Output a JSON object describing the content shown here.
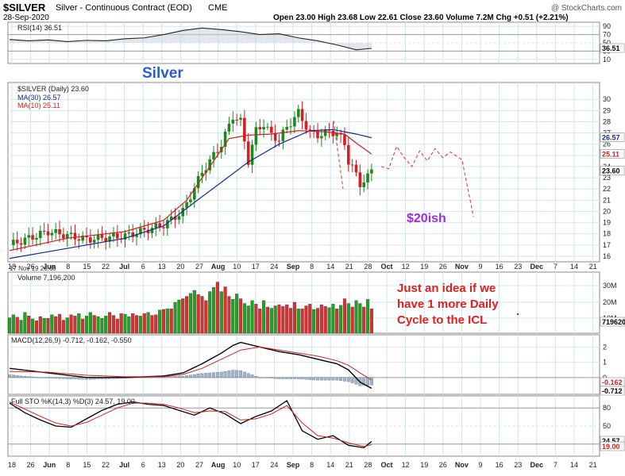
{
  "header": {
    "symbol": "$SILVER",
    "name": "Silver - Continuous Contract (EOD)",
    "exchange": "CME",
    "date": "28-Sep-2020",
    "copyright": "@ StockCharts.com",
    "ohlc": "Open 23.00  High 23.68  Low 22.61  Close 23.60  Volume 7.2M  Chg +0.51 (+2.21%)"
  },
  "annotations": {
    "title": "Silver",
    "target": "$20ish",
    "note_lines": [
      "Just an idea if we",
      "have 1 more Daily",
      "Cycle to the ICL"
    ]
  },
  "chart_data": [
    {
      "type": "line",
      "panel": "rsi",
      "legend": "RSI(14) 36.51",
      "last_value": "36.51",
      "ylim": [
        0,
        100
      ],
      "ticks": [
        10,
        30,
        50,
        70,
        90
      ],
      "x": [
        0,
        5,
        10,
        15,
        20,
        25,
        30,
        35,
        40,
        45,
        50,
        55,
        60,
        65,
        70,
        75,
        80,
        85,
        90,
        94
      ],
      "y": [
        58,
        55,
        57,
        53,
        56,
        55,
        60,
        62,
        70,
        80,
        86,
        82,
        77,
        70,
        72,
        62,
        55,
        45,
        33,
        36.51
      ]
    },
    {
      "type": "line",
      "panel": "price",
      "legend": "$SILVER (Daily) 23.60",
      "ylim": [
        15.5,
        31.5
      ],
      "ticks": [
        16,
        17,
        18,
        19,
        20,
        21,
        22,
        23,
        24,
        25,
        26,
        27,
        28,
        29,
        30
      ],
      "right_labels": [
        "26.57",
        "25.11",
        "23.60"
      ],
      "x_labels": [
        "18",
        "26",
        "Jun",
        "8",
        "15",
        "22",
        "Jul",
        "6",
        "13",
        "20",
        "27",
        "Aug",
        "10",
        "17",
        "24",
        "Sep",
        "8",
        "14",
        "21",
        "28",
        "Oct",
        "12",
        "19",
        "26",
        "Nov",
        "9",
        "16",
        "23",
        "Dec",
        "7",
        "14",
        "21"
      ],
      "corner_label": "17 Nov 19 26.68",
      "series": [
        {
          "name": "$SILVER (Daily) 23.60",
          "x": [
            0,
            10,
            20,
            30,
            40,
            45,
            50,
            55,
            58,
            60,
            62,
            64,
            66,
            68,
            70,
            72,
            75,
            78,
            80,
            83,
            85,
            87,
            88,
            89,
            90,
            91,
            92,
            93,
            94
          ],
          "values": [
            17.0,
            18.2,
            17.5,
            17.8,
            18.8,
            20.0,
            23.5,
            26.0,
            28.5,
            28.0,
            24.5,
            27.2,
            27.8,
            26.8,
            26.4,
            27.5,
            28.8,
            27.0,
            26.8,
            27.1,
            27.0,
            26.0,
            24.5,
            24.0,
            23.2,
            22.4,
            22.8,
            23.09,
            23.6
          ]
        },
        {
          "name": "MA(30) 26.57",
          "x": [
            0,
            15,
            30,
            40,
            48,
            55,
            62,
            70,
            78,
            84,
            90,
            94
          ],
          "values": [
            15.8,
            16.7,
            17.6,
            18.7,
            20.8,
            22.6,
            24.4,
            26.0,
            27.2,
            27.3,
            26.9,
            26.57
          ]
        },
        {
          "name": "MA(10) 25.11",
          "x": [
            0,
            15,
            30,
            40,
            46,
            52,
            57,
            62,
            68,
            75,
            82,
            87,
            90,
            94
          ],
          "values": [
            16.5,
            17.6,
            18.2,
            19.2,
            21.0,
            24.0,
            26.5,
            26.8,
            26.9,
            27.2,
            27.1,
            26.9,
            26.1,
            25.11
          ]
        }
      ],
      "projection": {
        "x": [
          94,
          96,
          98,
          100,
          102,
          104,
          106,
          108,
          110,
          112,
          115,
          118
        ],
        "values": [
          24.0,
          23.8,
          25.8,
          24.8,
          24.0,
          25.4,
          24.5,
          25.6,
          24.8,
          25.3,
          24.6,
          19.5
        ]
      }
    },
    {
      "type": "bar",
      "panel": "volume",
      "legend": "Volume 7,196,200",
      "ticks": [
        "10M",
        "20M",
        "30M"
      ],
      "last_value": "7196200",
      "values": [
        0.26,
        0.31,
        0.27,
        0.22,
        0.35,
        0.29,
        0.24,
        0.21,
        0.28,
        0.25,
        0.25,
        0.31,
        0.28,
        0.32,
        0.22,
        0.26,
        0.31,
        0.29,
        0.33,
        0.24,
        0.29,
        0.35,
        0.3,
        0.28,
        0.25,
        0.29,
        0.35,
        0.3,
        0.24,
        0.33,
        0.32,
        0.28,
        0.33,
        0.3,
        0.29,
        0.33,
        0.35,
        0.3,
        0.31,
        0.39,
        0.4,
        0.41,
        0.41,
        0.52,
        0.56,
        0.58,
        0.62,
        0.67,
        0.72,
        0.65,
        0.62,
        0.55,
        0.7,
        0.77,
        0.86,
        0.7,
        0.78,
        0.62,
        0.57,
        0.66,
        0.58,
        0.5,
        0.46,
        0.55,
        0.49,
        0.41,
        0.55,
        0.44,
        0.42,
        0.46,
        0.48,
        0.45,
        0.48,
        0.42,
        0.52,
        0.41,
        0.41,
        0.46,
        0.49,
        0.4,
        0.42,
        0.48,
        0.45,
        0.43,
        0.49,
        0.41,
        0.47,
        0.58,
        0.5,
        0.44,
        0.55,
        0.5,
        0.44,
        0.57,
        0.41
      ],
      "up": [
        1,
        1,
        0,
        1,
        1,
        0,
        1,
        0,
        0,
        1,
        0,
        1,
        0,
        0,
        0,
        1,
        0,
        0,
        1,
        0,
        1,
        1,
        0,
        1,
        1,
        1,
        0,
        0,
        0,
        0,
        1,
        1,
        0,
        0,
        1,
        0,
        1,
        0,
        0,
        1,
        0,
        1,
        0,
        1,
        1,
        0,
        0,
        1,
        1,
        0,
        0,
        0,
        1,
        1,
        0,
        1,
        0,
        0,
        1,
        1,
        0,
        1,
        1,
        1,
        0,
        0,
        1,
        0,
        1,
        1,
        0,
        0,
        0,
        0,
        0,
        1,
        0,
        0,
        0,
        1,
        0,
        0,
        0,
        1,
        1,
        0,
        1,
        0,
        1,
        0,
        1,
        1,
        0,
        1,
        0
      ]
    },
    {
      "type": "line",
      "panel": "macd",
      "legend": "MACD(12,26,9) -0.712, -0.162, -0.550",
      "ticks": [
        "2",
        "1",
        "0"
      ],
      "right_labels": [
        "-0.162",
        "-0.712"
      ],
      "ylim": [
        -1.1,
        2.8
      ],
      "series": [
        {
          "name": "MACD(12,26,9)",
          "x": [
            0,
            10,
            20,
            30,
            40,
            45,
            50,
            55,
            58,
            60,
            65,
            70,
            75,
            80,
            85,
            88,
            91,
            94
          ],
          "values": [
            0.6,
            0.3,
            0.0,
            0.0,
            0.1,
            0.3,
            0.9,
            1.6,
            2.1,
            2.3,
            2.0,
            1.7,
            1.5,
            1.2,
            0.9,
            0.5,
            -0.3,
            -0.712
          ]
        },
        {
          "name": "signal",
          "x": [
            0,
            10,
            20,
            30,
            40,
            45,
            50,
            55,
            60,
            65,
            70,
            75,
            80,
            85,
            88,
            91,
            94
          ],
          "values": [
            0.4,
            0.35,
            0.15,
            0.05,
            0.05,
            0.2,
            0.6,
            1.2,
            1.8,
            2.0,
            1.8,
            1.6,
            1.4,
            1.1,
            0.8,
            0.3,
            -0.162
          ]
        }
      ],
      "histogram_range": [
        -0.55,
        0.5
      ]
    },
    {
      "type": "line",
      "panel": "stochastic",
      "legend": "Full STO %K(14,3) %D(3) 24.57, 19.00",
      "ylim": [
        0,
        100
      ],
      "ticks": [
        "20",
        "50",
        "80"
      ],
      "right_labels": [
        "24.57",
        "19.00"
      ],
      "series": [
        {
          "name": "%K",
          "x": [
            0,
            4,
            8,
            12,
            16,
            20,
            24,
            28,
            32,
            36,
            40,
            44,
            48,
            52,
            56,
            60,
            64,
            68,
            72,
            76,
            80,
            84,
            88,
            92,
            94
          ],
          "values": [
            88,
            72,
            60,
            50,
            48,
            62,
            76,
            86,
            90,
            86,
            84,
            76,
            68,
            80,
            70,
            54,
            66,
            75,
            92,
            42,
            28,
            34,
            18,
            14,
            24.57
          ]
        },
        {
          "name": "%D",
          "x": [
            0,
            4,
            8,
            12,
            16,
            20,
            24,
            28,
            32,
            36,
            40,
            44,
            48,
            52,
            56,
            60,
            64,
            68,
            72,
            76,
            80,
            84,
            88,
            92,
            94
          ],
          "values": [
            90,
            78,
            66,
            55,
            50,
            56,
            68,
            80,
            88,
            88,
            86,
            80,
            72,
            75,
            74,
            60,
            62,
            70,
            84,
            55,
            34,
            30,
            22,
            16,
            19.0
          ]
        }
      ]
    }
  ]
}
